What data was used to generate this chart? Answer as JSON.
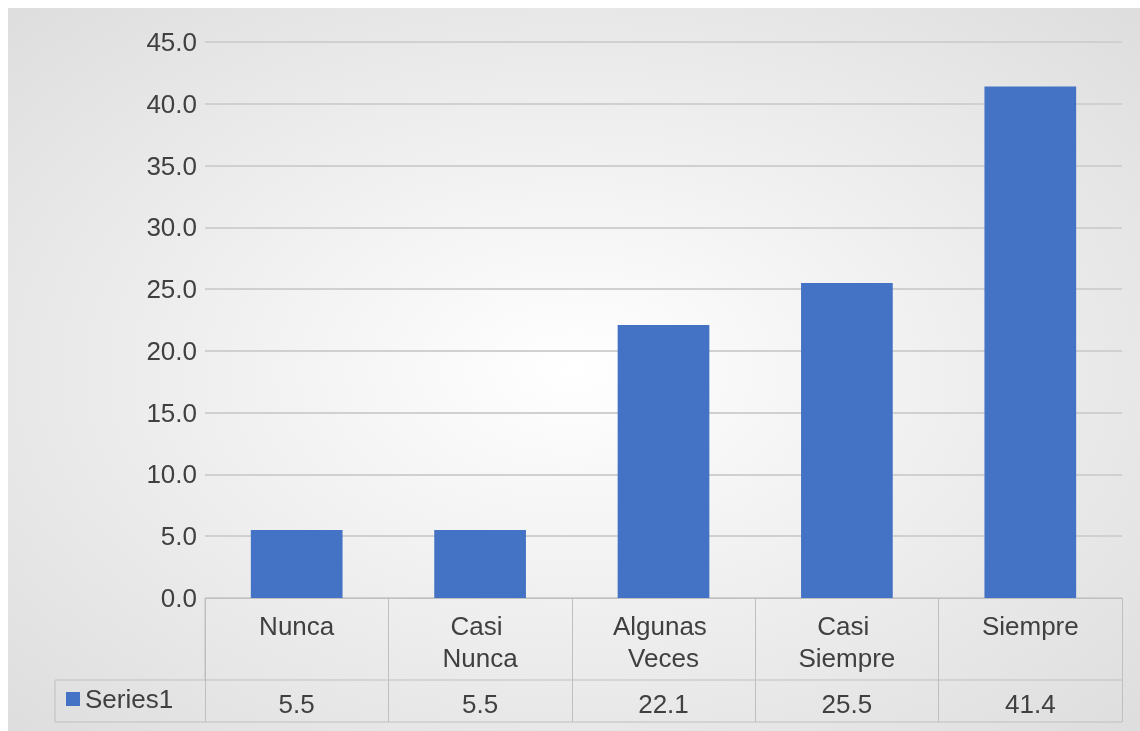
{
  "chart_data": {
    "type": "bar",
    "categories": [
      "Nunca",
      "Casi Nunca",
      "Algunas Veces",
      "Casi Siempre",
      "Siempre"
    ],
    "series": [
      {
        "name": "Series1",
        "color": "#4472c4",
        "values": [
          5.5,
          5.5,
          22.1,
          25.5,
          41.4
        ]
      }
    ],
    "ylim": [
      0,
      45
    ],
    "yticks": [
      {
        "value": 0,
        "label": "0.0"
      },
      {
        "value": 5,
        "label": "5.0"
      },
      {
        "value": 10,
        "label": "10.0"
      },
      {
        "value": 15,
        "label": "15.0"
      },
      {
        "value": 20,
        "label": "20.0"
      },
      {
        "value": 25,
        "label": "25.0"
      },
      {
        "value": 30,
        "label": "30.0"
      },
      {
        "value": 35,
        "label": "35.0"
      },
      {
        "value": 40,
        "label": "40.0"
      },
      {
        "value": 45,
        "label": "45.0"
      }
    ],
    "grid": "y",
    "legend": "bottom left",
    "data_labels": true
  }
}
